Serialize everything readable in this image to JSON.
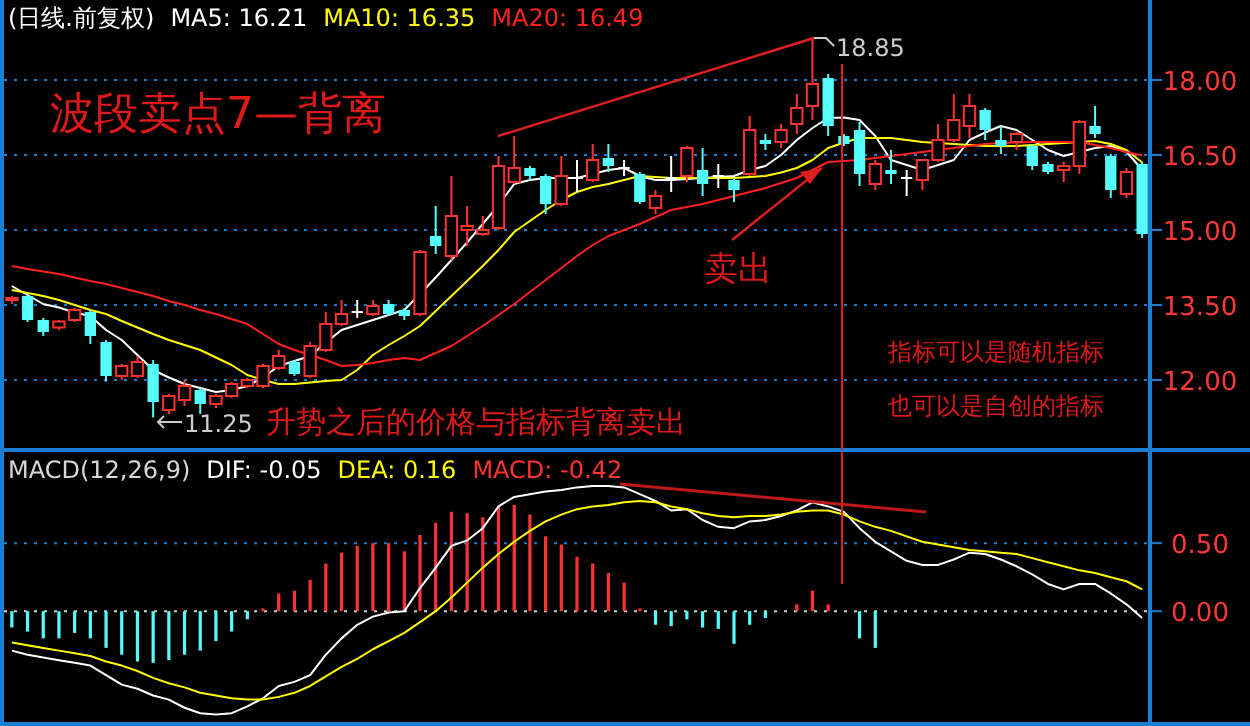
{
  "chart_data": [
    {
      "type": "candlestick",
      "title": "(日线.前复权)",
      "legend": "top left",
      "grid": "y",
      "categories": [
        null,
        null,
        null,
        null,
        null,
        null,
        null,
        null,
        null,
        null,
        null,
        null,
        null,
        null,
        null,
        null,
        null,
        null,
        null,
        null,
        null,
        null,
        null,
        null,
        null,
        null,
        null,
        null,
        null,
        null,
        null,
        null,
        null,
        null,
        null,
        null,
        null,
        null,
        null,
        null,
        null,
        null,
        null,
        null,
        null,
        null,
        null,
        null,
        null,
        null,
        null,
        null,
        null,
        null,
        null,
        null,
        null,
        null,
        null,
        null,
        null,
        null,
        null,
        null,
        null,
        null,
        null,
        null,
        null,
        null,
        null,
        null,
        null
      ],
      "ohlc": [
        [
          13.6,
          13.68,
          13.52,
          13.64
        ],
        [
          13.68,
          13.72,
          13.16,
          13.2
        ],
        [
          13.2,
          13.24,
          12.88,
          12.96
        ],
        [
          13.05,
          13.2,
          13.0,
          13.17
        ],
        [
          13.2,
          13.44,
          13.16,
          13.4
        ],
        [
          13.36,
          13.4,
          12.72,
          12.88
        ],
        [
          12.76,
          12.8,
          11.97,
          12.08
        ],
        [
          12.08,
          12.32,
          12.0,
          12.28
        ],
        [
          12.08,
          12.48,
          12.04,
          12.36
        ],
        [
          12.32,
          12.4,
          11.25,
          11.56
        ],
        [
          11.4,
          11.72,
          11.32,
          11.68
        ],
        [
          11.6,
          12.0,
          11.48,
          11.88
        ],
        [
          11.8,
          11.84,
          11.32,
          11.52
        ],
        [
          11.52,
          11.72,
          11.44,
          11.68
        ],
        [
          11.68,
          11.96,
          11.64,
          11.92
        ],
        [
          11.88,
          12.04,
          11.84,
          12.0
        ],
        [
          11.88,
          12.32,
          11.84,
          12.28
        ],
        [
          12.24,
          12.6,
          12.2,
          12.48
        ],
        [
          12.36,
          12.4,
          12.08,
          12.12
        ],
        [
          12.08,
          12.76,
          12.04,
          12.68
        ],
        [
          12.6,
          13.36,
          12.56,
          13.12
        ],
        [
          13.12,
          13.6,
          13.08,
          13.32
        ],
        [
          13.36,
          13.6,
          13.24,
          13.36
        ],
        [
          13.32,
          13.6,
          13.28,
          13.48
        ],
        [
          13.52,
          13.6,
          13.28,
          13.32
        ],
        [
          13.4,
          13.44,
          13.2,
          13.28
        ],
        [
          13.32,
          14.6,
          13.28,
          14.56
        ],
        [
          14.88,
          15.48,
          14.52,
          14.68
        ],
        [
          14.48,
          16.08,
          14.4,
          15.28
        ],
        [
          15.0,
          15.48,
          14.68,
          15.08
        ],
        [
          14.92,
          15.28,
          14.88,
          15.0
        ],
        [
          15.04,
          16.48,
          15.0,
          16.28
        ],
        [
          15.96,
          16.88,
          15.92,
          16.24
        ],
        [
          16.24,
          16.28,
          16.0,
          16.08
        ],
        [
          16.08,
          16.12,
          15.32,
          15.52
        ],
        [
          15.52,
          16.48,
          15.48,
          16.08
        ],
        [
          16.04,
          16.4,
          15.76,
          16.04
        ],
        [
          16.0,
          16.72,
          15.96,
          16.4
        ],
        [
          16.44,
          16.72,
          16.16,
          16.28
        ],
        [
          16.24,
          16.4,
          16.08,
          16.24
        ],
        [
          16.12,
          16.16,
          15.52,
          15.56
        ],
        [
          15.44,
          15.8,
          15.32,
          15.68
        ],
        [
          16.04,
          16.48,
          15.76,
          16.04
        ],
        [
          16.08,
          16.68,
          15.96,
          16.64
        ],
        [
          16.2,
          16.64,
          15.68,
          15.92
        ],
        [
          16.08,
          16.32,
          15.84,
          16.08
        ],
        [
          16.0,
          16.04,
          15.56,
          15.8
        ],
        [
          16.12,
          17.28,
          16.08,
          17.0
        ],
        [
          16.8,
          16.92,
          16.6,
          16.72
        ],
        [
          16.76,
          17.12,
          16.64,
          17.0
        ],
        [
          17.12,
          17.72,
          16.92,
          17.44
        ],
        [
          17.48,
          18.85,
          17.2,
          17.92
        ],
        [
          18.04,
          18.12,
          16.88,
          17.08
        ],
        [
          16.88,
          16.92,
          16.68,
          16.72
        ],
        [
          17.0,
          17.16,
          15.88,
          16.12
        ],
        [
          15.92,
          16.4,
          15.8,
          16.32
        ],
        [
          16.2,
          16.6,
          15.92,
          16.12
        ],
        [
          16.04,
          16.2,
          15.68,
          16.04
        ],
        [
          16.0,
          16.4,
          15.8,
          16.4
        ],
        [
          16.4,
          17.12,
          16.36,
          16.8
        ],
        [
          16.8,
          17.72,
          16.76,
          17.2
        ],
        [
          17.08,
          17.72,
          16.84,
          17.48
        ],
        [
          17.4,
          17.44,
          16.8,
          17.0
        ],
        [
          16.8,
          17.08,
          16.52,
          16.68
        ],
        [
          16.76,
          16.96,
          16.6,
          16.92
        ],
        [
          16.68,
          16.72,
          16.2,
          16.28
        ],
        [
          16.32,
          16.36,
          16.12,
          16.16
        ],
        [
          16.2,
          16.36,
          15.96,
          16.28
        ],
        [
          16.28,
          17.2,
          16.12,
          17.16
        ],
        [
          17.08,
          17.48,
          16.84,
          16.92
        ],
        [
          16.48,
          16.52,
          15.64,
          15.8
        ],
        [
          15.72,
          16.24,
          15.64,
          16.16
        ],
        [
          16.32,
          16.36,
          14.84,
          14.92
        ]
      ],
      "colors": [
        "#ff3232",
        "#54fcfc",
        "#54fcfc",
        "#ff3232",
        "#ff3232",
        "#54fcfc",
        "#54fcfc",
        "#ff3232",
        "#ff3232",
        "#54fcfc",
        "#ff3232",
        "#ff3232",
        "#54fcfc",
        "#ff3232",
        "#ff3232",
        "#ff3232",
        "#ff3232",
        "#ff3232",
        "#54fcfc",
        "#ff3232",
        "#ff3232",
        "#ff3232",
        "#ffffff",
        "#ff3232",
        "#54fcfc",
        "#54fcfc",
        "#ff3232",
        "#54fcfc",
        "#ff3232",
        "#ff3232",
        "#ff3232",
        "#ff3232",
        "#ff3232",
        "#54fcfc",
        "#54fcfc",
        "#ff3232",
        "#ffffff",
        "#ff3232",
        "#54fcfc",
        "#ffffff",
        "#54fcfc",
        "#ff3232",
        "#ffffff",
        "#ff3232",
        "#54fcfc",
        "#ffffff",
        "#54fcfc",
        "#ff3232",
        "#54fcfc",
        "#ff3232",
        "#ff3232",
        "#ff3232",
        "#54fcfc",
        "#54fcfc",
        "#54fcfc",
        "#ff3232",
        "#54fcfc",
        "#ffffff",
        "#ff3232",
        "#ff3232",
        "#ff3232",
        "#ff3232",
        "#54fcfc",
        "#54fcfc",
        "#ff3232",
        "#54fcfc",
        "#54fcfc",
        "#ff3232",
        "#ff3232",
        "#54fcfc",
        "#54fcfc",
        "#ff3232",
        "#54fcfc"
      ],
      "series": [
        {
          "name": "MA5: 16.21",
          "type": "line",
          "color": "#ffffff",
          "values": [
            13.88,
            13.7,
            13.52,
            13.45,
            13.35,
            13.28,
            13.0,
            12.8,
            12.5,
            12.2,
            12.05,
            11.92,
            11.84,
            11.76,
            11.8,
            11.88,
            12.05,
            12.28,
            12.38,
            12.48,
            12.75,
            13.0,
            13.1,
            13.2,
            13.3,
            13.4,
            13.72,
            14.05,
            14.4,
            14.75,
            15.12,
            15.5,
            15.92,
            16.0,
            16.04,
            16.04,
            16.04,
            16.12,
            16.2,
            16.24,
            16.08,
            16.0,
            16.0,
            16.02,
            16.04,
            16.06,
            16.08,
            16.2,
            16.28,
            16.5,
            16.8,
            17.04,
            17.24,
            17.25,
            17.2,
            16.88,
            16.4,
            16.3,
            16.2,
            16.3,
            16.4,
            16.8,
            16.95,
            17.08,
            17.0,
            16.8,
            16.6,
            16.48,
            16.56,
            16.64,
            16.68,
            16.56,
            16.21
          ]
        },
        {
          "name": "MA10: 16.35",
          "type": "line",
          "color": "#ffff00",
          "values": [
            13.8,
            13.74,
            13.68,
            13.6,
            13.5,
            13.4,
            13.32,
            13.18,
            13.05,
            12.92,
            12.8,
            12.7,
            12.6,
            12.45,
            12.3,
            12.1,
            12.0,
            11.92,
            11.92,
            11.95,
            11.98,
            12.0,
            12.2,
            12.5,
            12.7,
            12.88,
            13.08,
            13.38,
            13.68,
            13.98,
            14.28,
            14.6,
            14.96,
            15.18,
            15.4,
            15.6,
            15.76,
            15.86,
            15.92,
            16.0,
            16.08,
            16.06,
            16.04,
            16.04,
            16.04,
            16.04,
            16.04,
            16.06,
            16.08,
            16.15,
            16.24,
            16.4,
            16.64,
            16.75,
            16.84,
            16.84,
            16.84,
            16.8,
            16.76,
            16.74,
            16.72,
            16.7,
            16.68,
            16.68,
            16.68,
            16.7,
            16.72,
            16.74,
            16.76,
            16.78,
            16.72,
            16.6,
            16.35
          ]
        },
        {
          "name": "MA20: 16.49",
          "type": "line",
          "color": "#ff2020",
          "values": [
            14.28,
            14.22,
            14.17,
            14.12,
            14.05,
            13.98,
            13.92,
            13.84,
            13.76,
            13.68,
            13.58,
            13.5,
            13.4,
            13.32,
            13.22,
            13.12,
            12.92,
            12.72,
            12.6,
            12.5,
            12.4,
            12.28,
            12.3,
            12.34,
            12.4,
            12.44,
            12.4,
            12.54,
            12.68,
            12.88,
            13.08,
            13.3,
            13.52,
            13.76,
            14.0,
            14.24,
            14.48,
            14.7,
            14.88,
            15.0,
            15.12,
            15.26,
            15.4,
            15.46,
            15.52,
            15.6,
            15.68,
            15.76,
            15.84,
            15.94,
            16.04,
            16.2,
            16.36,
            16.38,
            16.4,
            16.44,
            16.48,
            16.52,
            16.56,
            16.6,
            16.64,
            16.68,
            16.72,
            16.74,
            16.75,
            16.76,
            16.76,
            16.76,
            16.76,
            16.7,
            16.64,
            16.56,
            16.49
          ]
        }
      ],
      "ylim": [
        10.6,
        19.6
      ],
      "yticks": [
        {
          "value": 12,
          "label": "12.00"
        },
        {
          "value": 13.5,
          "label": "13.50"
        },
        {
          "value": 15,
          "label": "15.00"
        },
        {
          "value": 16.5,
          "label": "16.50"
        },
        {
          "value": 18,
          "label": "18.00"
        }
      ],
      "annotations": [
        "波段卖点7—背离",
        "18.85",
        "11.25",
        "卖出",
        "升势之后的价格与指标背离卖出",
        "指标可以是随机指标",
        "也可以是自创的指标"
      ]
    },
    {
      "type": "bar",
      "title": "MACD(12,26,9)",
      "legend": "top left",
      "ref_lines": [
        {
          "axis": "y",
          "value": 0,
          "color": "#d0d0d0",
          "line_style": "dotted"
        },
        {
          "axis": "y",
          "value": 0.5,
          "color": "#1a7fd0",
          "line_style": "dotted"
        }
      ],
      "categories": [
        null,
        null,
        null,
        null,
        null,
        null,
        null,
        null,
        null,
        null,
        null,
        null,
        null,
        null,
        null,
        null,
        null,
        null,
        null,
        null,
        null,
        null,
        null,
        null,
        null,
        null,
        null,
        null,
        null,
        null,
        null,
        null,
        null,
        null,
        null,
        null,
        null,
        null,
        null,
        null,
        null,
        null,
        null,
        null,
        null,
        null,
        null,
        null,
        null,
        null,
        null,
        null,
        null,
        null,
        null,
        null,
        null,
        null,
        null,
        null,
        null,
        null,
        null,
        null,
        null,
        null,
        null,
        null,
        null,
        null,
        null,
        null,
        null
      ],
      "series": [
        {
          "name": "DIF: -0.05",
          "type": "line",
          "color": "#ffffff",
          "values": [
            -0.29,
            -0.32,
            -0.34,
            -0.36,
            -0.38,
            -0.4,
            -0.47,
            -0.54,
            -0.57,
            -0.62,
            -0.65,
            -0.71,
            -0.75,
            -0.76,
            -0.75,
            -0.7,
            -0.64,
            -0.55,
            -0.52,
            -0.47,
            -0.32,
            -0.2,
            -0.1,
            -0.04,
            -0.01,
            0.0,
            0.17,
            0.32,
            0.48,
            0.52,
            0.61,
            0.77,
            0.84,
            0.86,
            0.88,
            0.89,
            0.91,
            0.92,
            0.92,
            0.91,
            0.86,
            0.81,
            0.74,
            0.75,
            0.67,
            0.62,
            0.61,
            0.66,
            0.67,
            0.7,
            0.74,
            0.8,
            0.77,
            0.73,
            0.61,
            0.51,
            0.44,
            0.37,
            0.34,
            0.34,
            0.38,
            0.43,
            0.42,
            0.38,
            0.33,
            0.27,
            0.2,
            0.16,
            0.2,
            0.2,
            0.13,
            0.05,
            -0.05
          ]
        },
        {
          "name": "DEA: 0.16",
          "type": "line",
          "color": "#ffff00",
          "values": [
            -0.23,
            -0.25,
            -0.27,
            -0.29,
            -0.31,
            -0.33,
            -0.37,
            -0.4,
            -0.44,
            -0.49,
            -0.53,
            -0.56,
            -0.6,
            -0.62,
            -0.64,
            -0.65,
            -0.65,
            -0.63,
            -0.6,
            -0.55,
            -0.48,
            -0.41,
            -0.35,
            -0.28,
            -0.22,
            -0.16,
            -0.08,
            0.0,
            0.1,
            0.21,
            0.32,
            0.42,
            0.51,
            0.59,
            0.66,
            0.71,
            0.75,
            0.77,
            0.78,
            0.8,
            0.81,
            0.8,
            0.77,
            0.75,
            0.72,
            0.7,
            0.69,
            0.7,
            0.7,
            0.71,
            0.73,
            0.74,
            0.74,
            0.71,
            0.66,
            0.62,
            0.59,
            0.55,
            0.51,
            0.49,
            0.47,
            0.45,
            0.44,
            0.43,
            0.42,
            0.39,
            0.36,
            0.33,
            0.3,
            0.28,
            0.25,
            0.22,
            0.16
          ]
        },
        {
          "name": "MACD: -0.42",
          "type": "bar",
          "color": "#ff3232",
          "values": [
            -0.12,
            -0.15,
            -0.2,
            -0.2,
            -0.16,
            -0.2,
            -0.27,
            -0.32,
            -0.37,
            -0.38,
            -0.36,
            -0.32,
            -0.29,
            -0.22,
            -0.15,
            -0.06,
            0.02,
            0.13,
            0.15,
            0.23,
            0.35,
            0.43,
            0.48,
            0.5,
            0.5,
            0.44,
            0.56,
            0.65,
            0.73,
            0.72,
            0.69,
            0.77,
            0.78,
            0.71,
            0.55,
            0.49,
            0.4,
            0.35,
            0.28,
            0.21,
            0.02,
            -0.1,
            -0.11,
            -0.06,
            -0.12,
            -0.13,
            -0.24,
            -0.1,
            -0.05,
            null,
            0.05,
            0.15,
            0.05,
            null,
            -0.2,
            -0.27,
            null,
            null,
            null,
            null,
            null,
            null,
            null,
            null,
            null,
            null,
            null,
            null,
            null,
            null,
            null,
            null,
            null
          ],
          "colors": [
            "#54fcfc",
            "#54fcfc",
            "#54fcfc",
            "#54fcfc",
            "#54fcfc",
            "#54fcfc",
            "#54fcfc",
            "#54fcfc",
            "#54fcfc",
            "#54fcfc",
            "#54fcfc",
            "#54fcfc",
            "#54fcfc",
            "#54fcfc",
            "#54fcfc",
            "#54fcfc",
            "#ff3232",
            "#ff3232",
            "#ff3232",
            "#ff3232",
            "#ff3232",
            "#ff3232",
            "#ff3232",
            "#ff3232",
            "#ff3232",
            "#ff3232",
            "#ff3232",
            "#ff3232",
            "#ff3232",
            "#ff3232",
            "#ff3232",
            "#ff3232",
            "#ff3232",
            "#ff3232",
            "#ff3232",
            "#ff3232",
            "#ff3232",
            "#ff3232",
            "#ff3232",
            "#ff3232",
            "#ff3232",
            "#54fcfc",
            "#54fcfc",
            "#54fcfc",
            "#54fcfc",
            "#54fcfc",
            "#54fcfc",
            "#54fcfc",
            "#54fcfc",
            null,
            "#ff3232",
            "#ff3232",
            "#ff3232",
            null,
            "#54fcfc",
            "#54fcfc",
            null,
            null,
            null,
            null,
            null,
            null,
            null,
            null,
            null,
            null,
            null,
            null,
            null,
            null,
            null,
            null,
            null
          ]
        }
      ],
      "ylim": [
        -0.8,
        1.17
      ],
      "yticks": [
        {
          "value": 0,
          "label": "0.00"
        },
        {
          "value": 0.5,
          "label": "0.50"
        }
      ]
    }
  ]
}
